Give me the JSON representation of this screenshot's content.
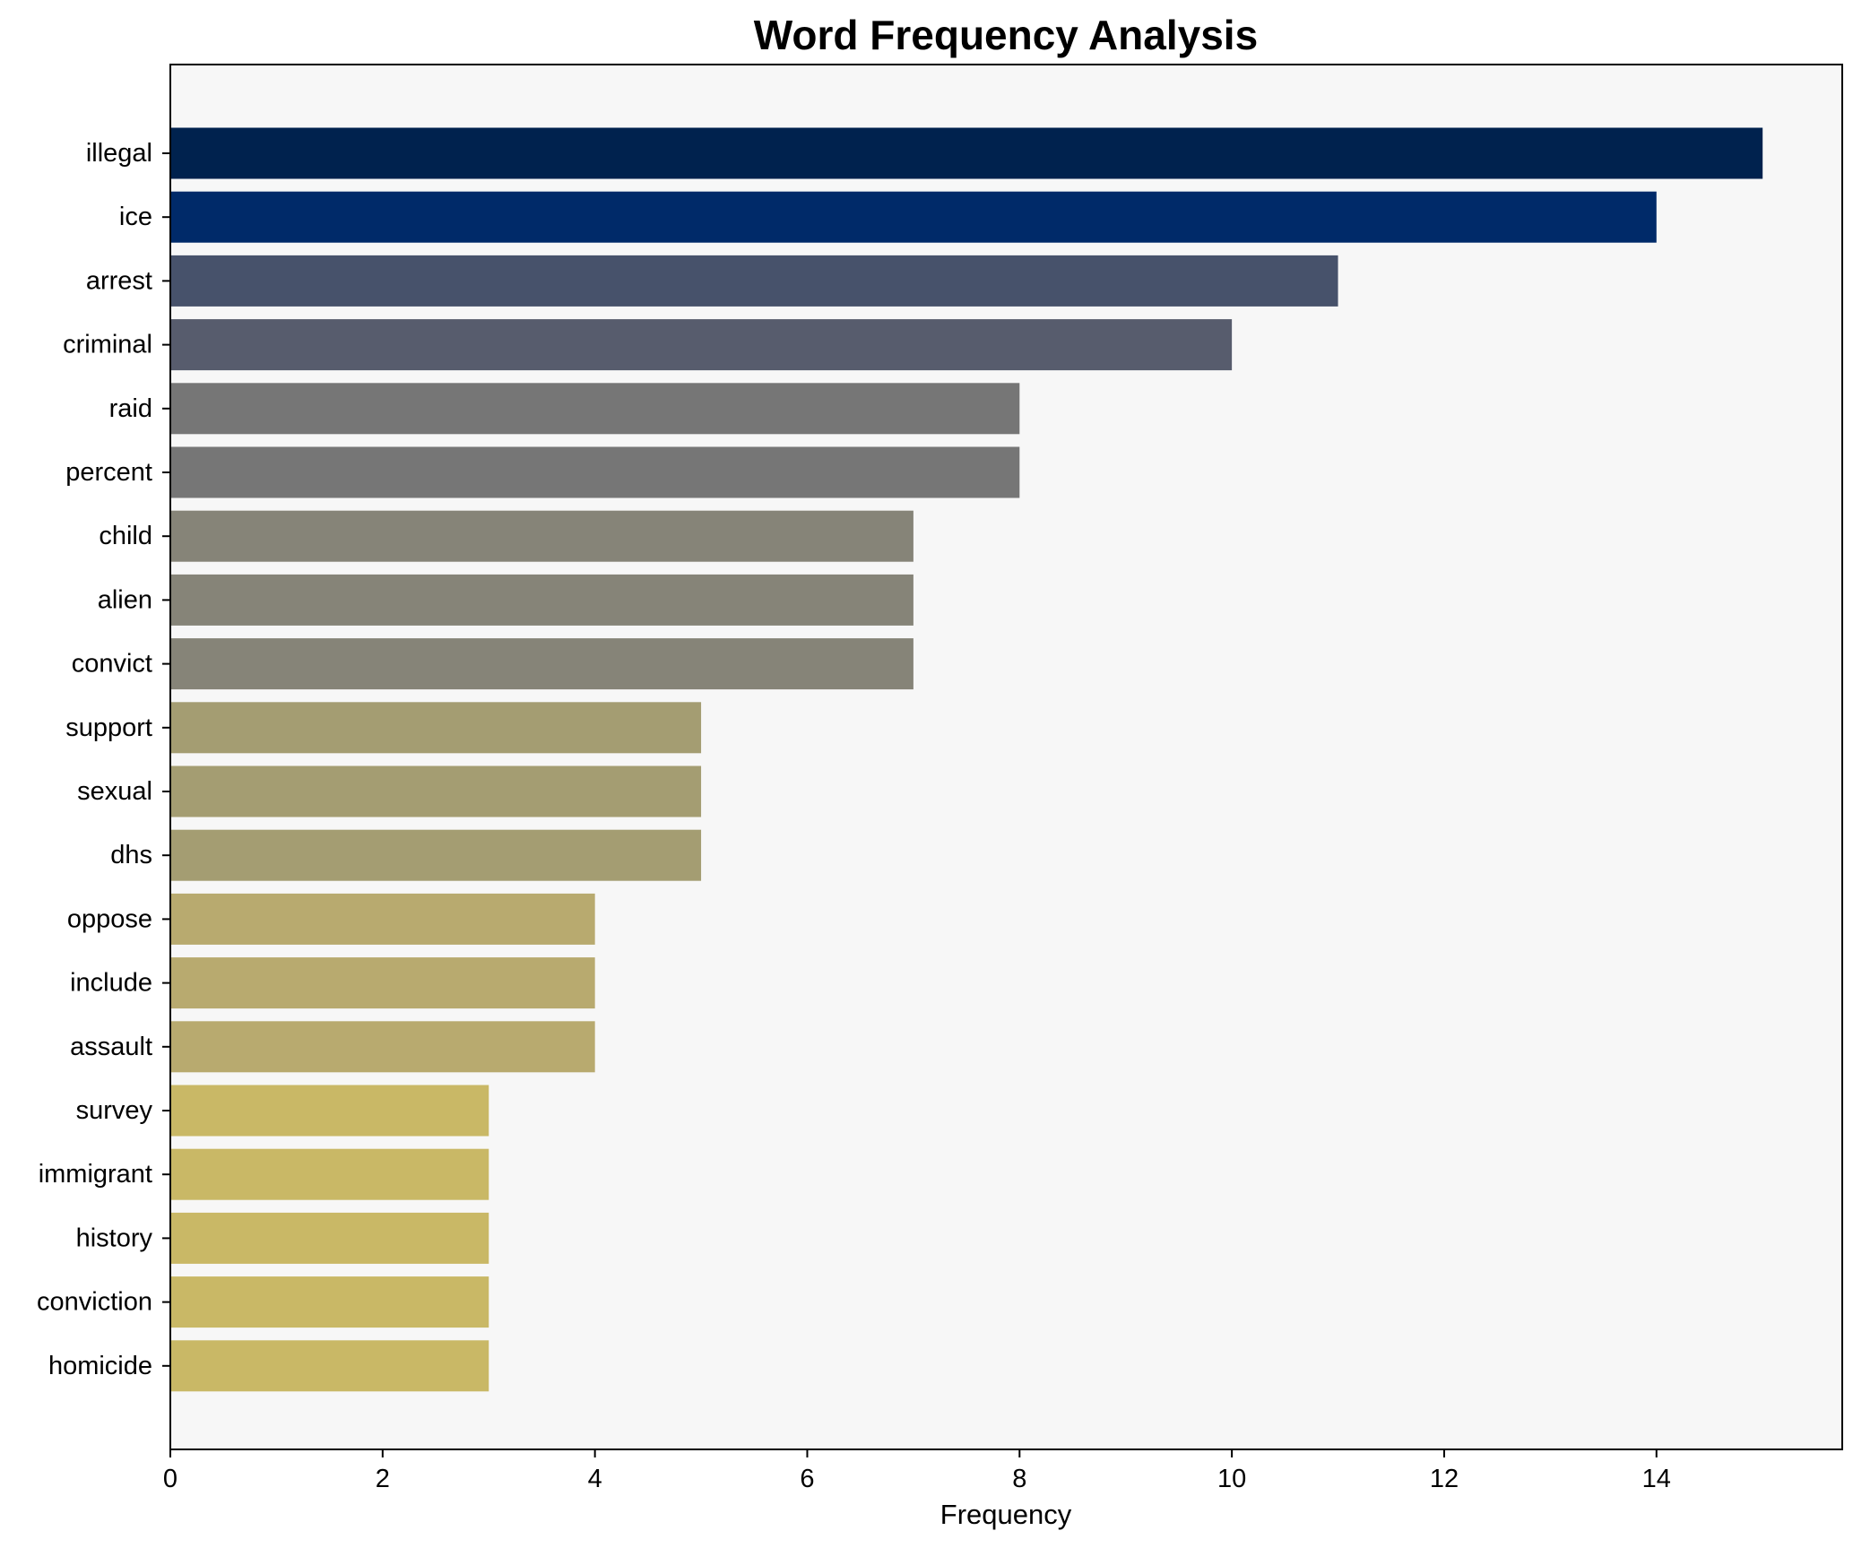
{
  "chart_data": {
    "type": "bar",
    "orientation": "horizontal",
    "title": "Word Frequency Analysis",
    "xlabel": "Frequency",
    "ylabel": "",
    "xlim": [
      0,
      15.75
    ],
    "xticks": [
      0,
      2,
      4,
      6,
      8,
      10,
      12,
      14
    ],
    "grid": false,
    "legend": "none",
    "plot_background": "#f7f7f7",
    "categories": [
      "illegal",
      "ice",
      "arrest",
      "criminal",
      "raid",
      "percent",
      "child",
      "alien",
      "convict",
      "support",
      "sexual",
      "dhs",
      "oppose",
      "include",
      "assault",
      "survey",
      "immigrant",
      "history",
      "conviction",
      "homicide"
    ],
    "values": [
      15,
      14,
      11,
      10,
      8,
      8,
      7,
      7,
      7,
      5,
      5,
      5,
      4,
      4,
      4,
      3,
      3,
      3,
      3,
      3
    ],
    "colors": [
      "#00224e",
      "#002a69",
      "#47526b",
      "#575c6d",
      "#767676",
      "#767676",
      "#868478",
      "#868478",
      "#868478",
      "#a49d72",
      "#a49d72",
      "#a49d72",
      "#b8aa6f",
      "#b8aa6f",
      "#b8aa6f",
      "#c9b866",
      "#c9b866",
      "#c9b866",
      "#c9b866",
      "#c9b866"
    ]
  }
}
